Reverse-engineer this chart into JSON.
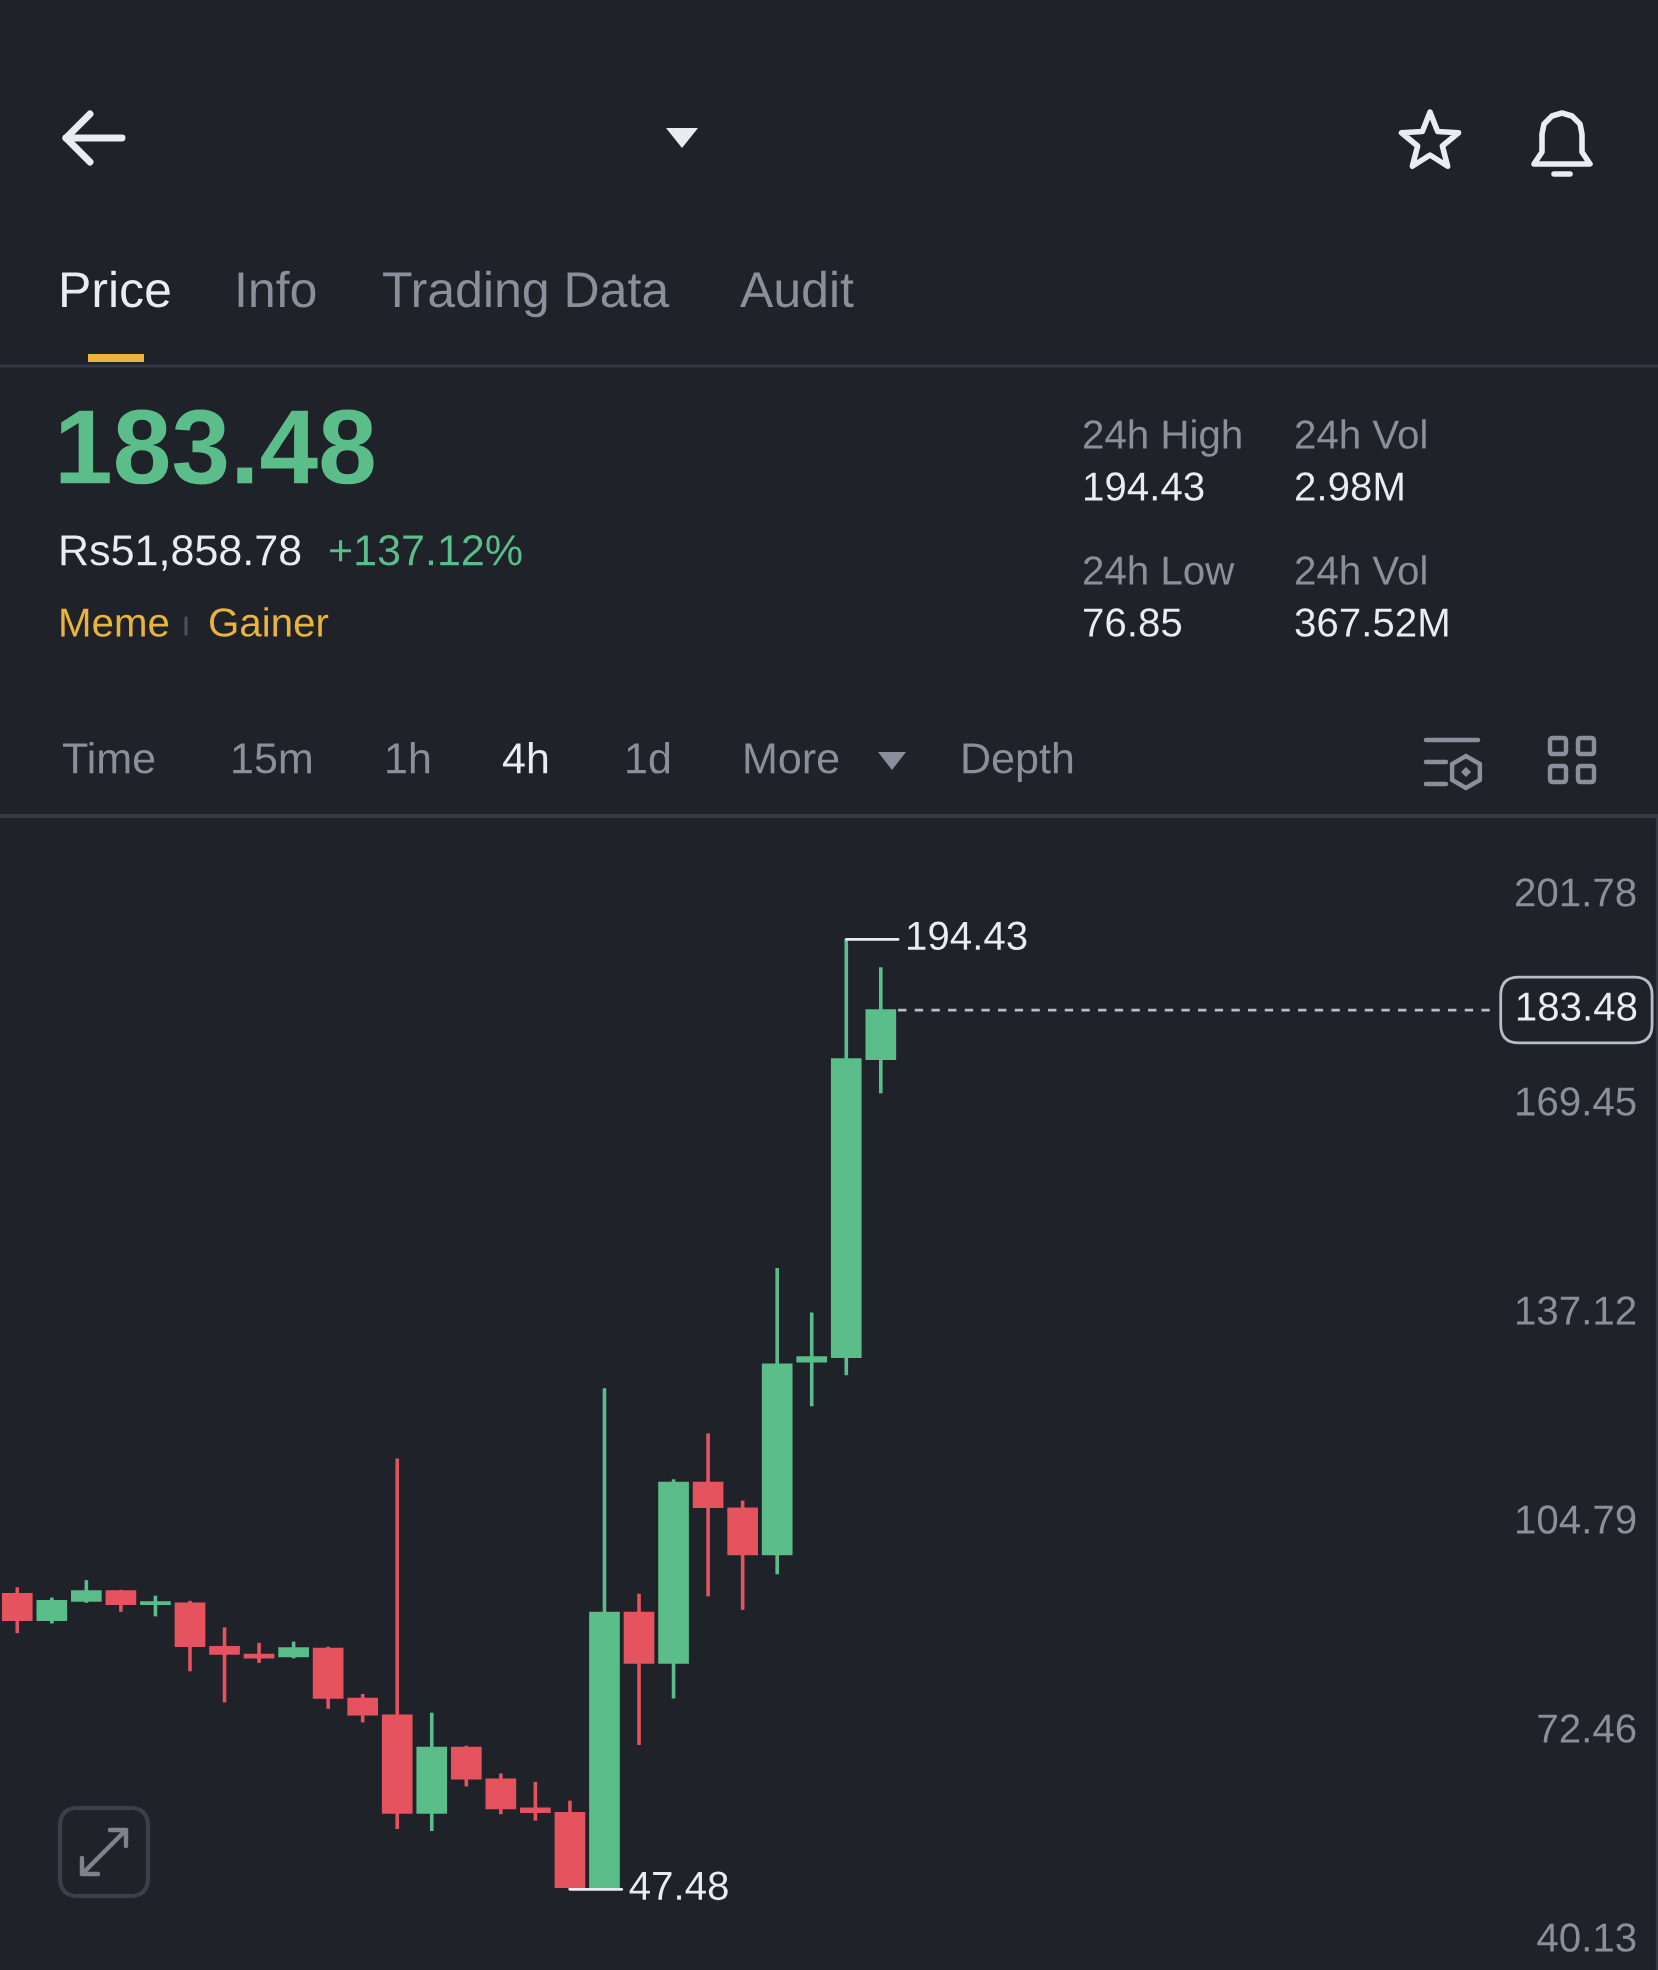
{
  "chart_data": {
    "type": "candlestick",
    "categories": [
      null,
      null,
      null,
      null,
      null,
      null,
      null,
      null,
      null,
      null,
      null,
      null,
      null,
      null,
      null,
      null,
      null,
      null,
      null,
      null,
      null,
      null,
      null,
      null,
      null,
      null,
      null,
      null,
      null,
      null,
      null,
      null,
      null,
      null,
      null,
      null,
      null,
      null,
      null,
      null,
      null,
      null,
      null,
      null,
      null,
      null,
      null,
      null
    ],
    "ohlc": [
      [
        93.2,
        94.2,
        87.1,
        89.1
      ],
      [
        89.1,
        92.6,
        88.6,
        92.1
      ],
      [
        92.1,
        95.3,
        91.8,
        93.6
      ],
      [
        93.6,
        93.8,
        90.4,
        91.6
      ],
      [
        91.6,
        92.9,
        89.7,
        91.9
      ],
      [
        91.7,
        92.1,
        81.2,
        85.1
      ],
      [
        85.0,
        88.0,
        76.4,
        83.9
      ],
      [
        83.8,
        85.6,
        82.5,
        83.3
      ],
      [
        83.5,
        85.8,
        83.2,
        84.8
      ],
      [
        84.7,
        85.0,
        75.4,
        77.1
      ],
      [
        77.0,
        77.7,
        73.3,
        74.5
      ],
      [
        74.4,
        114.1,
        56.8,
        59.3
      ],
      [
        59.3,
        74.8,
        56.5,
        69.4
      ],
      [
        69.4,
        69.7,
        63.4,
        64.6
      ],
      [
        64.5,
        65.4,
        59.1,
        60.0
      ],
      [
        60.0,
        64.1,
        58.1,
        59.4
      ],
      [
        59.3,
        61.2,
        47.48,
        47.8
      ],
      [
        47.8,
        125.0,
        47.6,
        90.3
      ],
      [
        90.3,
        93.2,
        69.8,
        82.5
      ],
      [
        82.5,
        110.9,
        77.0,
        110.4
      ],
      [
        110.4,
        118.0,
        92.8,
        106.6
      ],
      [
        106.4,
        107.6,
        90.7,
        99.3
      ],
      [
        99.3,
        143.6,
        96.2,
        128.7
      ],
      [
        129.1,
        136.7,
        122.2,
        129.8
      ],
      [
        129.8,
        194.43,
        127.0,
        175.9
      ],
      [
        175.9,
        190.1,
        170.6,
        183.48
      ],
      null,
      null,
      null,
      null,
      null,
      null,
      null,
      null,
      null,
      null,
      null,
      null,
      null,
      null,
      null,
      null,
      null,
      null,
      null,
      null,
      null,
      null
    ],
    "colors": [
      "#e5535f",
      "#5bbd89",
      "#5bbd89",
      "#e5535f",
      "#5bbd89",
      "#e5535f",
      "#e5535f",
      "#e5535f",
      "#5bbd89",
      "#e5535f",
      "#e5535f",
      "#e5535f",
      "#5bbd89",
      "#e5535f",
      "#e5535f",
      "#e5535f",
      "#e5535f",
      "#5bbd89",
      "#e5535f",
      "#5bbd89",
      "#e5535f",
      "#e5535f",
      "#5bbd89",
      "#5bbd89",
      "#5bbd89",
      "#5bbd89",
      null,
      null,
      null,
      null,
      null,
      null,
      null,
      null,
      null,
      null,
      null,
      null,
      null,
      null,
      null,
      null,
      null,
      null,
      null,
      null,
      null,
      null
    ],
    "ylim": [
      35,
      213.5
    ],
    "yticks": [
      201.78,
      169.45,
      137.12,
      104.79,
      72.46,
      40.13
    ],
    "tick_labels": "y",
    "ref_lines": [
      {
        "axis": "y",
        "value": 183.48,
        "label": "183.48",
        "line_style": "dashed",
        "color": "#b7bdc6"
      }
    ],
    "annotations": [
      "Price",
      "Info",
      "Trading Data",
      "Audit",
      "183.48",
      "Rs51,858.78",
      "+137.12%",
      "Meme",
      "Gainer",
      "24h High",
      "194.43",
      "24h Vol",
      "2.98M",
      "24h Low",
      "76.85",
      "24h Vol",
      "367.52M",
      "Time",
      "15m",
      "1h",
      "4h",
      "1d",
      "More",
      "Depth",
      "194.43",
      "47.48"
    ]
  }
}
